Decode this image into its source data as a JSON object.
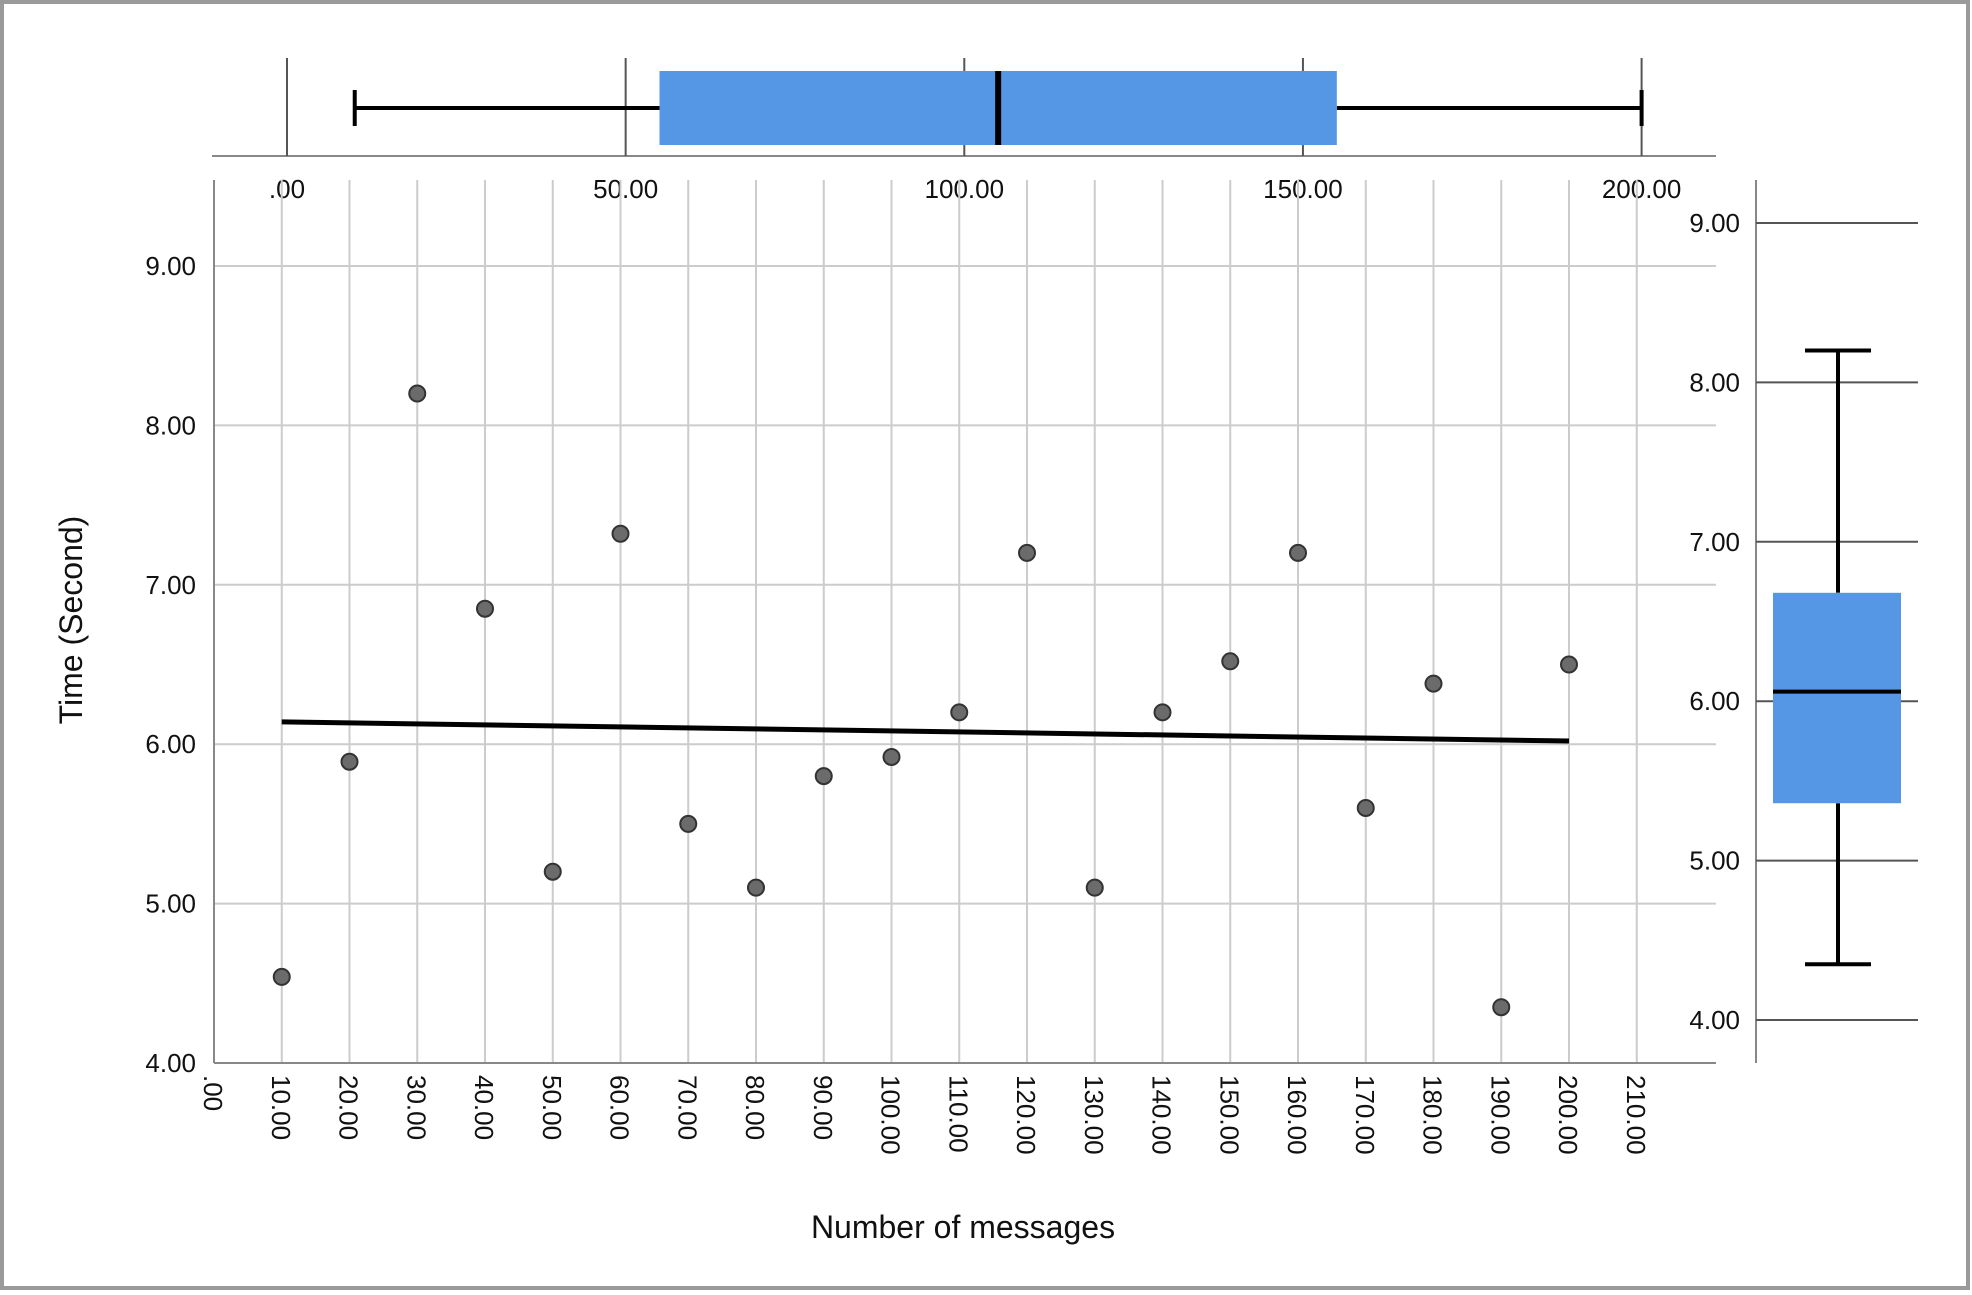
{
  "chart_data": [
    {
      "type": "scatter",
      "xlabel": "Number of messages",
      "ylabel": "Time (Second)",
      "xlim": [
        0,
        210
      ],
      "ylim": [
        4,
        9.5
      ],
      "x_ticks": [
        ".00",
        "10.00",
        "20.00",
        "30.00",
        "40.00",
        "50.00",
        "60.00",
        "70.00",
        "80.00",
        "90.00",
        "100.00",
        "110.00",
        "120.00",
        "130.00",
        "140.00",
        "150.00",
        "160.00",
        "170.00",
        "180.00",
        "190.00",
        "200.00",
        "210.00"
      ],
      "y_ticks": [
        "4.00",
        "5.00",
        "6.00",
        "7.00",
        "8.00",
        "9.00"
      ],
      "grid": true,
      "points": [
        {
          "x": 10,
          "y": 4.54
        },
        {
          "x": 20,
          "y": 5.89
        },
        {
          "x": 30,
          "y": 8.2
        },
        {
          "x": 40,
          "y": 6.85
        },
        {
          "x": 50,
          "y": 5.2
        },
        {
          "x": 60,
          "y": 7.32
        },
        {
          "x": 70,
          "y": 5.5
        },
        {
          "x": 80,
          "y": 5.1
        },
        {
          "x": 90,
          "y": 5.8
        },
        {
          "x": 100,
          "y": 5.92
        },
        {
          "x": 110,
          "y": 6.2
        },
        {
          "x": 120,
          "y": 7.2
        },
        {
          "x": 130,
          "y": 5.1
        },
        {
          "x": 140,
          "y": 6.2
        },
        {
          "x": 150,
          "y": 6.52
        },
        {
          "x": 160,
          "y": 7.2
        },
        {
          "x": 170,
          "y": 5.6
        },
        {
          "x": 180,
          "y": 6.38
        },
        {
          "x": 190,
          "y": 4.35
        },
        {
          "x": 200,
          "y": 6.5
        }
      ],
      "fit_line": {
        "x": [
          10,
          200
        ],
        "y": [
          6.14,
          6.02
        ]
      },
      "colors": {
        "point_fill": "#6b6b6b",
        "point_stroke": "#333333",
        "fit_line": "#000000",
        "grid": "#cccccc"
      }
    },
    {
      "type": "boxplot",
      "orientation": "horizontal",
      "variable": "Number of messages",
      "axis_ticks": [
        ".00",
        "50.00",
        "100.00",
        "150.00",
        "200.00"
      ],
      "xlim": [
        0,
        210
      ],
      "min": 10,
      "q1": 55,
      "median": 105,
      "q3": 155,
      "max": 200,
      "colors": {
        "box": "#5597e4"
      }
    },
    {
      "type": "boxplot",
      "orientation": "vertical",
      "variable": "Time (Second)",
      "axis_ticks": [
        "4.00",
        "5.00",
        "6.00",
        "7.00",
        "8.00",
        "9.00"
      ],
      "ylim": [
        4,
        9.5
      ],
      "min": 4.35,
      "q1": 5.36,
      "median": 6.06,
      "q3": 6.68,
      "max": 8.2,
      "colors": {
        "box": "#5597e4"
      }
    }
  ]
}
